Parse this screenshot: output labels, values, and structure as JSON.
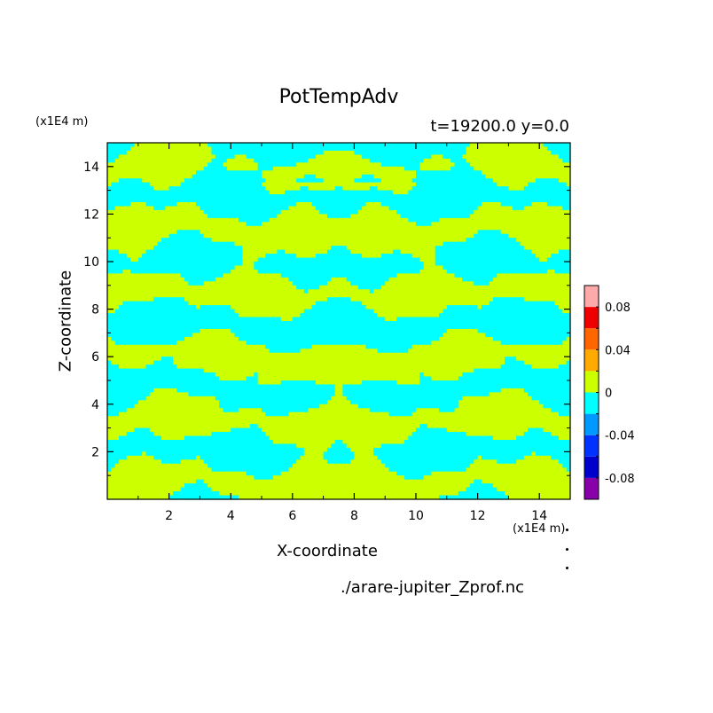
{
  "chart_data": {
    "type": "heatmap",
    "title": "PotTempAdv",
    "subtitle": "t=19200.0 y=0.0",
    "xlabel": "X-coordinate",
    "ylabel": "Z-coordinate",
    "x_unit": "(x1E4 m)",
    "y_unit": "(x1E4 m)",
    "xlim": [
      0,
      15
    ],
    "ylim": [
      0,
      15
    ],
    "x_ticks": [
      2,
      4,
      6,
      8,
      10,
      12,
      14
    ],
    "y_ticks": [
      2,
      4,
      6,
      8,
      10,
      12,
      14
    ],
    "x_tick_labels": [
      "2",
      "4",
      "6",
      "8",
      "10",
      "12",
      "14"
    ],
    "y_tick_labels": [
      "2",
      "4",
      "6",
      "8",
      "10",
      "12",
      "14"
    ],
    "field_values": [
      -0.02,
      0.02
    ],
    "field_colors": [
      "#00ffff",
      "#ccff00"
    ],
    "colorbar": {
      "levels": [
        -0.1,
        -0.08,
        -0.06,
        -0.04,
        -0.02,
        0,
        0.02,
        0.04,
        0.06,
        0.08,
        0.1
      ],
      "colors": [
        "#8800aa",
        "#0000cc",
        "#0033ff",
        "#0099ff",
        "#00ffff",
        "#ccff00",
        "#ffaa00",
        "#ff6600",
        "#ee0000",
        "#ffaaaa"
      ],
      "tick_values": [
        -0.08,
        -0.04,
        0,
        0.04,
        0.08
      ],
      "tick_labels": [
        "-0.08",
        "-0.04",
        "0",
        "0.04",
        "0.08"
      ]
    }
  },
  "source_file": "./arare-jupiter_Zprof.nc"
}
